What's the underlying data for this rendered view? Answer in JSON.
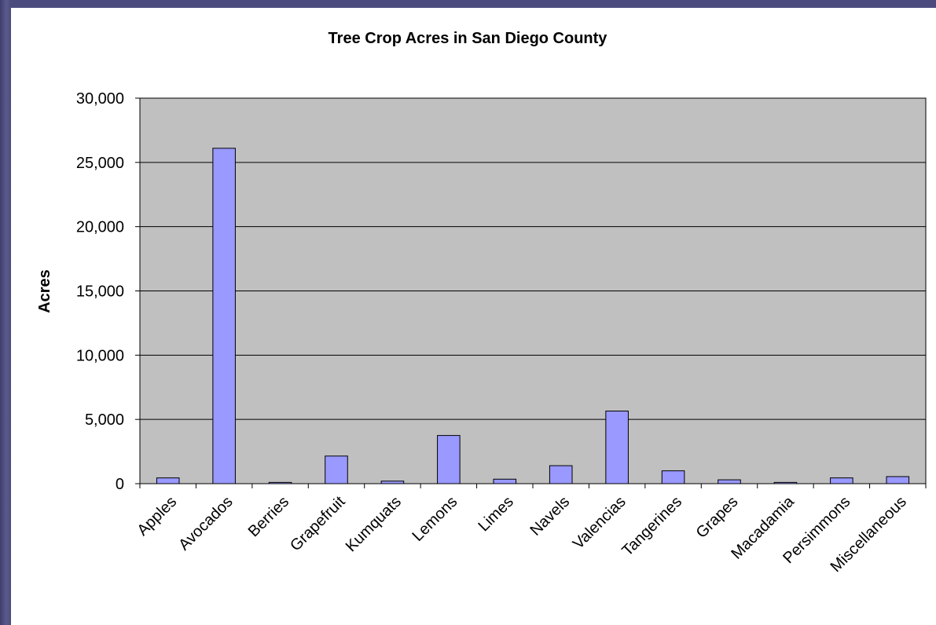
{
  "chart_data": {
    "type": "bar",
    "title": "Tree Crop Acres in San Diego County",
    "xlabel": "",
    "ylabel": "Acres",
    "ylim": [
      0,
      30000
    ],
    "yticks": [
      0,
      5000,
      10000,
      15000,
      20000,
      25000,
      30000
    ],
    "ytick_labels": [
      "0",
      "5,000",
      "10,000",
      "15,000",
      "20,000",
      "25,000",
      "30,000"
    ],
    "grid": true,
    "legend": "none",
    "categories": [
      "Apples",
      "Avocados",
      "Berries",
      "Grapefruit",
      "Kumquats",
      "Lemons",
      "Limes",
      "Navels",
      "Valencias",
      "Tangerines",
      "Grapes",
      "Macadamia",
      "Persimmons",
      "Miscellaneous"
    ],
    "values": [
      450,
      26100,
      100,
      2150,
      200,
      3750,
      350,
      1400,
      5650,
      1000,
      300,
      100,
      450,
      550
    ],
    "colors": {
      "bar_fill": "#9999ff",
      "bar_stroke": "#000000",
      "plot_bg": "#c0c0c0",
      "grid": "#000000"
    }
  }
}
